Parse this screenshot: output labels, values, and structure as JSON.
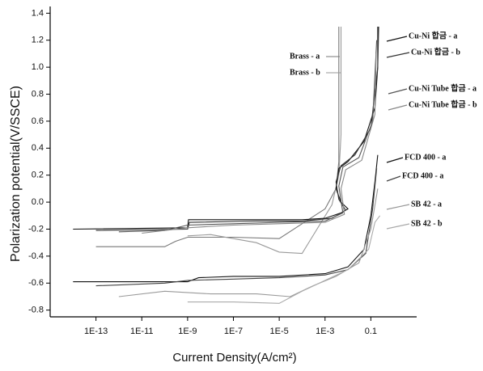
{
  "chart_data": {
    "type": "line",
    "x_label": "Current Density(A/cm²)",
    "y_label": "Polarization potential(V/SSCE)",
    "xscale": "log",
    "xlim": [
      1e-15,
      10
    ],
    "ylim": [
      -0.85,
      1.45
    ],
    "xticks": [
      {
        "value": 1e-13,
        "label": "1E-13"
      },
      {
        "value": 1e-11,
        "label": "1E-11"
      },
      {
        "value": 1e-09,
        "label": "1E-9"
      },
      {
        "value": 1e-07,
        "label": "1E-7"
      },
      {
        "value": 1e-05,
        "label": "1E-5"
      },
      {
        "value": 0.001,
        "label": "1E-3"
      },
      0.1
    ],
    "yticks": [
      -0.8,
      -0.6,
      -0.4,
      -0.2,
      {
        "value": 0,
        "label": "0.0"
      },
      0.2,
      0.4,
      0.6,
      0.8,
      {
        "value": 1,
        "label": "1.0"
      },
      1.2,
      1.4
    ],
    "series": [
      {
        "name": "Brass - a",
        "color": "#777777",
        "x": [
          1e-13,
          1e-10,
          3e-10,
          1e-09,
          1e-07,
          1e-05,
          0.001,
          0.003,
          0.004,
          0.004
        ],
        "values": [
          -0.33,
          -0.33,
          -0.29,
          -0.26,
          -0.26,
          -0.27,
          -0.05,
          0.1,
          0.3,
          1.3
        ]
      },
      {
        "name": "Brass - b",
        "color": "#999999",
        "x": [
          1e-09,
          1e-08,
          1e-06,
          1e-05,
          0.0001,
          0.002,
          0.004,
          0.005,
          0.005
        ],
        "values": [
          -0.25,
          -0.24,
          -0.3,
          -0.37,
          -0.38,
          -0.02,
          0.2,
          0.5,
          1.3
        ]
      },
      {
        "name": "Cu-Ni 합금 - a",
        "color": "#111111",
        "x": [
          1e-14,
          1e-09,
          1.1e-09,
          1e-06,
          0.0001,
          0.001,
          0.005,
          0.01,
          0.005,
          0.003,
          0.004,
          0.01,
          0.05,
          0.15,
          0.2,
          0.2
        ],
        "values": [
          -0.2,
          -0.19,
          -0.13,
          -0.13,
          -0.13,
          -0.12,
          -0.08,
          -0.05,
          0.0,
          0.1,
          0.25,
          0.3,
          0.45,
          0.7,
          1.0,
          1.3
        ]
      },
      {
        "name": "Cu-Ni 합금 - b",
        "color": "#333333",
        "x": [
          1e-13,
          1e-09,
          1.2e-09,
          1e-06,
          0.0001,
          0.002,
          0.008,
          0.004,
          0.003,
          0.005,
          0.02,
          0.1,
          0.2,
          0.22
        ],
        "values": [
          -0.21,
          -0.2,
          -0.15,
          -0.14,
          -0.14,
          -0.12,
          -0.06,
          0.02,
          0.15,
          0.27,
          0.35,
          0.55,
          1.0,
          1.3
        ]
      },
      {
        "name": "Cu-Ni Tube 합금 - a",
        "color": "#555555",
        "x": [
          1e-12,
          1e-10,
          1e-09,
          1e-07,
          1e-05,
          0.001,
          0.006,
          0.004,
          0.006,
          0.03,
          0.12,
          0.18
        ],
        "values": [
          -0.22,
          -0.21,
          -0.17,
          -0.16,
          -0.15,
          -0.14,
          -0.08,
          0.12,
          0.26,
          0.33,
          0.6,
          1.2
        ]
      },
      {
        "name": "Cu-Ni Tube 합금 - b",
        "color": "#888888",
        "x": [
          1e-11,
          1e-09,
          1e-07,
          1e-05,
          0.001,
          0.007,
          0.005,
          0.008,
          0.04,
          0.15,
          0.17
        ],
        "values": [
          -0.23,
          -0.19,
          -0.17,
          -0.16,
          -0.15,
          -0.09,
          0.1,
          0.24,
          0.31,
          0.65,
          1.1
        ]
      },
      {
        "name": "FCD 400 - a",
        "color": "#111111",
        "x": [
          1e-14,
          1e-09,
          3e-09,
          1e-07,
          1e-05,
          0.001,
          0.01,
          0.05,
          0.1,
          0.15,
          0.2
        ],
        "values": [
          -0.59,
          -0.59,
          -0.56,
          -0.55,
          -0.55,
          -0.53,
          -0.48,
          -0.35,
          -0.1,
          0.15,
          0.35
        ]
      },
      {
        "name": "FCD 400 - a",
        "color": "#444444",
        "x": [
          1e-13,
          1e-10,
          1e-09,
          1e-07,
          1e-05,
          0.001,
          0.01,
          0.06,
          0.12,
          0.18
        ],
        "values": [
          -0.62,
          -0.6,
          -0.58,
          -0.57,
          -0.56,
          -0.54,
          -0.5,
          -0.38,
          -0.05,
          0.25
        ]
      },
      {
        "name": "SB 42 - a",
        "color": "#999999",
        "x": [
          1e-12,
          1e-10,
          1e-08,
          1e-06,
          3e-05,
          0.0003,
          0.003,
          0.03,
          0.1,
          0.2
        ],
        "values": [
          -0.7,
          -0.66,
          -0.68,
          -0.68,
          -0.7,
          -0.62,
          -0.55,
          -0.45,
          -0.2,
          0.1
        ]
      },
      {
        "name": "SB 42 - b",
        "color": "#aaaaaa",
        "x": [
          1e-09,
          1e-07,
          1e-05,
          0.0001,
          0.001,
          0.01,
          0.08,
          0.15,
          0.25
        ],
        "values": [
          -0.74,
          -0.74,
          -0.75,
          -0.66,
          -0.58,
          -0.5,
          -0.35,
          -0.15,
          -0.1
        ]
      }
    ]
  }
}
